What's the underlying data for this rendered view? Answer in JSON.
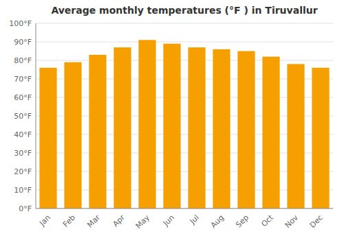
{
  "chart_data": {
    "type": "bar",
    "title": "Average monthly temperatures (°F ) in Tiruvallur",
    "categories": [
      "Jan",
      "Feb",
      "Mar",
      "Apr",
      "May",
      "Jun",
      "Jul",
      "Aug",
      "Sep",
      "Oct",
      "Nov",
      "Dec"
    ],
    "values": [
      76,
      79,
      83,
      87,
      91,
      89,
      87,
      86,
      85,
      82,
      78,
      76
    ],
    "color": "#F5A000",
    "ylim": [
      0,
      100
    ],
    "yticks": [
      {
        "value": 0,
        "label": "0°F"
      },
      {
        "value": 10,
        "label": "10°F"
      },
      {
        "value": 20,
        "label": "20°F"
      },
      {
        "value": 30,
        "label": "30°F"
      },
      {
        "value": 40,
        "label": "40°F"
      },
      {
        "value": 50,
        "label": "50°F"
      },
      {
        "value": 60,
        "label": "60°F"
      },
      {
        "value": 70,
        "label": "70°F"
      },
      {
        "value": 80,
        "label": "80°F"
      },
      {
        "value": 90,
        "label": "90°F"
      },
      {
        "value": 100,
        "label": "100°F"
      }
    ],
    "grid": true
  }
}
